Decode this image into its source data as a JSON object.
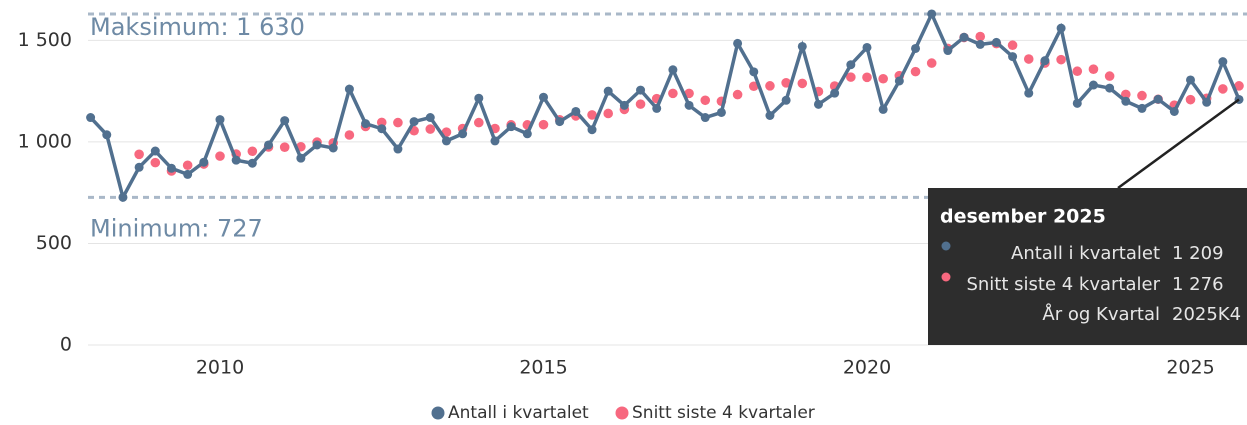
{
  "chart_data": {
    "type": "line",
    "x": [
      2008,
      2008.25,
      2008.5,
      2008.75,
      2009,
      2009.25,
      2009.5,
      2009.75,
      2010,
      2010.25,
      2010.5,
      2010.75,
      2011,
      2011.25,
      2011.5,
      2011.75,
      2012,
      2012.25,
      2012.5,
      2012.75,
      2013,
      2013.25,
      2013.5,
      2013.75,
      2014,
      2014.25,
      2014.5,
      2014.75,
      2015,
      2015.25,
      2015.5,
      2015.75,
      2016,
      2016.25,
      2016.5,
      2016.75,
      2017,
      2017.25,
      2017.5,
      2017.75,
      2018,
      2018.25,
      2018.5,
      2018.75,
      2019,
      2019.25,
      2019.5,
      2019.75,
      2020,
      2020.25,
      2020.5,
      2020.75,
      2021,
      2021.25,
      2021.5,
      2021.75,
      2022,
      2022.25,
      2022.5,
      2022.75,
      2023,
      2023.25,
      2023.5,
      2023.75,
      2024,
      2024.25,
      2024.5,
      2024.75,
      2025,
      2025.25,
      2025.5,
      2025.75
    ],
    "series": [
      {
        "name": "Antall i kvartalet",
        "color": "#51708f",
        "values": [
          1120,
          1035,
          727,
          875,
          955,
          870,
          840,
          900,
          1110,
          910,
          895,
          985,
          1105,
          920,
          985,
          970,
          1260,
          1090,
          1065,
          965,
          1100,
          1120,
          1005,
          1040,
          1215,
          1005,
          1075,
          1040,
          1220,
          1100,
          1150,
          1060,
          1250,
          1180,
          1255,
          1165,
          1355,
          1180,
          1120,
          1145,
          1485,
          1345,
          1130,
          1205,
          1470,
          1185,
          1240,
          1380,
          1465,
          1160,
          1300,
          1460,
          1630,
          1450,
          1515,
          1480,
          1490,
          1420,
          1240,
          1400,
          1560,
          1190,
          1280,
          1265,
          1200,
          1165,
          1210,
          1150,
          1305,
          1195,
          1395,
          1209
        ]
      },
      {
        "name": "Snitt siste 4 kvartaler",
        "color": "#f7687f",
        "values": [
          null,
          null,
          null,
          939,
          898,
          857,
          885,
          891,
          930,
          940,
          954,
          975,
          974,
          976,
          999,
          995,
          1034,
          1076,
          1096,
          1095,
          1055,
          1063,
          1048,
          1066,
          1095,
          1066,
          1084,
          1084,
          1085,
          1109,
          1128,
          1133,
          1140,
          1160,
          1186,
          1213,
          1239,
          1239,
          1205,
          1200,
          1233,
          1274,
          1276,
          1291,
          1288,
          1248,
          1275,
          1319,
          1318,
          1311,
          1326,
          1346,
          1388,
          1460,
          1514,
          1519,
          1484,
          1476,
          1408,
          1388,
          1405,
          1348,
          1358,
          1324,
          1234,
          1228,
          1210,
          1181,
          1208,
          1215,
          1261,
          1276
        ]
      }
    ],
    "xlim": [
      2007.95,
      2025.9
    ],
    "xticks": [
      2010,
      2015,
      2020,
      2025
    ],
    "ylim": [
      0,
      1680
    ],
    "yticks": [
      0,
      500,
      {
        "value": 1000,
        "label": "1 000"
      },
      {
        "value": 1500,
        "label": "1 500"
      }
    ],
    "grid": true,
    "annotations": [
      {
        "text": "Maksimum: 1 630",
        "value": 1630
      },
      {
        "text": "Minimum: 727",
        "value": 727
      }
    ]
  },
  "tooltip": {
    "title": "desember 2025",
    "rows": [
      {
        "label": "Antall i kvartalet",
        "value": "1 209"
      },
      {
        "label": "Snitt siste 4 kvartaler",
        "value": "1 276"
      },
      {
        "label": "År og Kvartal",
        "value": "2025K4"
      }
    ]
  }
}
